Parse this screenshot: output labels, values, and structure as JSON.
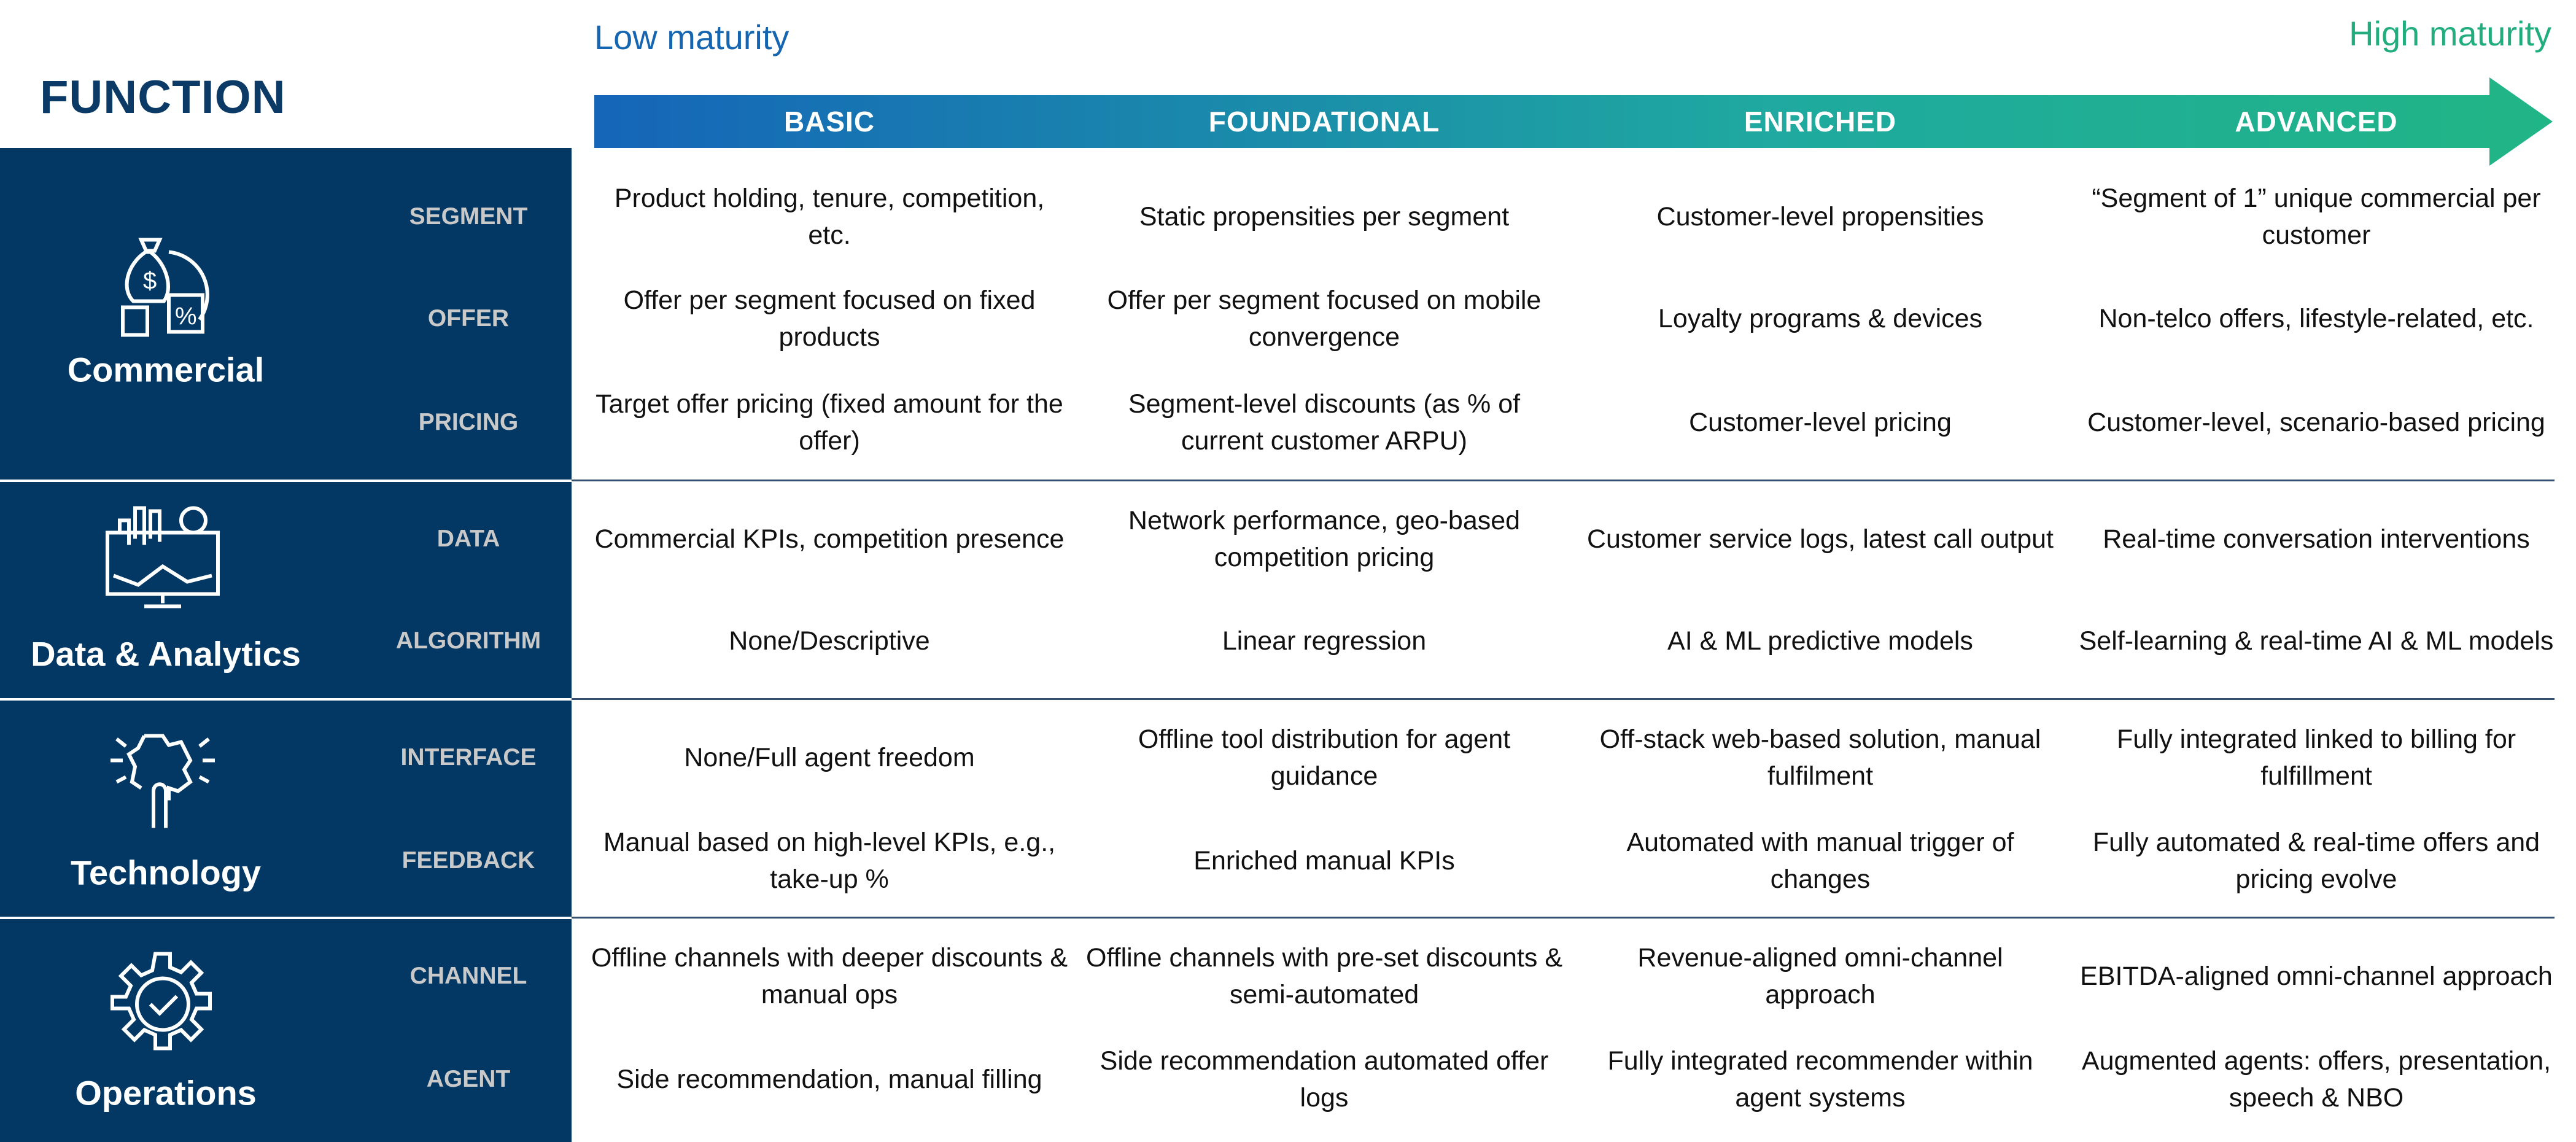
{
  "header": {
    "function_title": "FUNCTION",
    "low_label": "Low maturity",
    "high_label": "High maturity",
    "stages": [
      "BASIC",
      "FOUNDATIONAL",
      "ENRICHED",
      "ADVANCED"
    ],
    "colors": {
      "gradient_start": "#1565b8",
      "gradient_end": "#20b585",
      "panel": "#033864"
    }
  },
  "groups": [
    {
      "name": "Commercial",
      "icon": "money-bag-discount-icon",
      "rows": [
        {
          "label": "SEGMENT",
          "cells": [
            "Product holding, tenure, competition, etc.",
            "Static propensities per segment",
            "Customer-level propensities",
            "“Segment of 1” unique commercial per customer"
          ]
        },
        {
          "label": "OFFER",
          "cells": [
            "Offer per segment focused on fixed products",
            "Offer per segment focused on mobile convergence",
            "Loyalty programs & devices",
            "Non-telco offers, lifestyle-related, etc."
          ]
        },
        {
          "label": "PRICING",
          "cells": [
            "Target offer pricing (fixed amount for the offer)",
            "Segment-level discounts (as % of current customer ARPU)",
            "Customer-level pricing",
            "Customer-level, scenario-based pricing"
          ]
        }
      ]
    },
    {
      "name": "Data & Analytics",
      "icon": "monitor-analytics-icon",
      "rows": [
        {
          "label": "DATA",
          "cells": [
            "Commercial KPIs, competition presence",
            "Network performance, geo-based competition pricing",
            "Customer service logs, latest call output",
            "Real-time conversation interventions"
          ]
        },
        {
          "label": "ALGORITHM",
          "cells": [
            "None/Descriptive",
            "Linear regression",
            "AI & ML predictive models",
            "Self-learning & real-time AI & ML models"
          ]
        }
      ]
    },
    {
      "name": "Technology",
      "icon": "puzzle-touch-icon",
      "rows": [
        {
          "label": "INTERFACE",
          "cells": [
            "None/Full agent freedom",
            "Offline tool distribution for agent guidance",
            "Off-stack web-based solution, manual fulfilment",
            "Fully integrated linked to billing for fulfillment"
          ]
        },
        {
          "label": "FEEDBACK",
          "cells": [
            "Manual based on high-level KPIs, e.g., take-up %",
            "Enriched manual KPIs",
            "Automated with manual trigger of changes",
            "Fully automated & real-time offers and pricing evolve"
          ]
        }
      ]
    },
    {
      "name": "Operations",
      "icon": "gear-check-icon",
      "rows": [
        {
          "label": "CHANNEL",
          "cells": [
            "Offline channels with deeper discounts & manual ops",
            "Offline channels with pre-set discounts & semi-automated",
            "Revenue-aligned omni-channel approach",
            "EBITDA-aligned omni-channel approach"
          ]
        },
        {
          "label": "AGENT",
          "cells": [
            "Side recommendation, manual filling",
            "Side recommendation automated offer logs",
            "Fully integrated recommender within agent systems",
            "Augmented agents: offers, presentation, speech & NBO"
          ]
        }
      ]
    }
  ]
}
